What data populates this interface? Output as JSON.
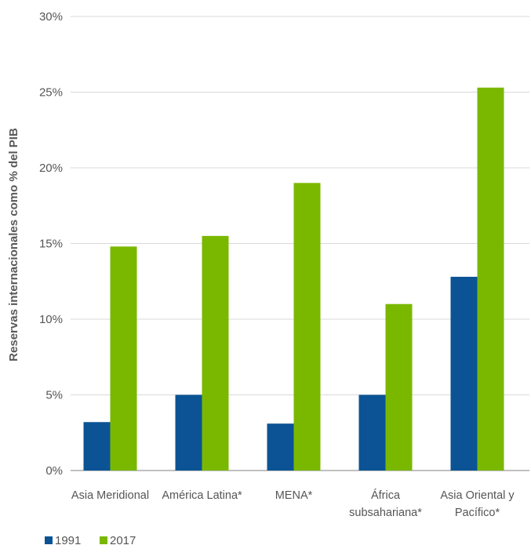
{
  "chart_data": {
    "type": "bar",
    "ylabel": "Reservas internacionales como % del PIB",
    "xlabel": "",
    "ylim": [
      0,
      30
    ],
    "yticks": [
      0,
      5,
      10,
      15,
      20,
      25,
      30
    ],
    "ytick_labels": [
      "0%",
      "5%",
      "10%",
      "15%",
      "20%",
      "25%",
      "30%"
    ],
    "grid": true,
    "legend_position": "bottom-left",
    "categories": [
      [
        "Asia Meridional"
      ],
      [
        "América Latina*"
      ],
      [
        "MENA*"
      ],
      [
        "África",
        "subsahariana*"
      ],
      [
        "Asia Oriental y",
        "Pacífico*"
      ]
    ],
    "series": [
      {
        "name": "1991",
        "color": "#0b5394",
        "values": [
          3.2,
          5.0,
          3.1,
          5.0,
          12.8
        ]
      },
      {
        "name": "2017",
        "color": "#7ab800",
        "values": [
          14.8,
          15.5,
          19.0,
          11.0,
          25.3
        ]
      }
    ]
  }
}
